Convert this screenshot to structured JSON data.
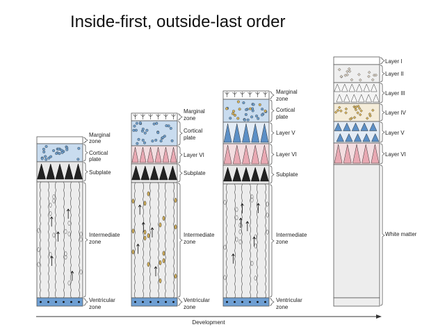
{
  "title": "Inside-first, outside-last order",
  "axis_label": "Development",
  "colors": {
    "cortical_plate": "#c9dcef",
    "cell_blue": "#6ea0cf",
    "ventricular": "#6e9fd3",
    "layer_vi": "#f3dde0",
    "neuron_pink": "#e9a9b3",
    "layer_v": "#e3ecf6",
    "neuron_blue": "#5b8fc6",
    "layer_iv": "#f4ecd9",
    "cell_gold": "#d6b25a",
    "gray": "#ededed",
    "outline": "#555555"
  },
  "stage1": {
    "labels": {
      "marginal": [
        "Marginal",
        "zone"
      ],
      "cortical": [
        "Cortical",
        "plate"
      ],
      "subplate": "Subplate",
      "intermediate": [
        "Intermediate",
        "zone"
      ],
      "ventricular": [
        "Ventricular",
        "zone"
      ]
    }
  },
  "stage2": {
    "labels": {
      "marginal": [
        "Marginal",
        "zone"
      ],
      "cortical": [
        "Cortical",
        "plate"
      ],
      "layer_vi": "Layer VI",
      "subplate": "Subplate",
      "intermediate": [
        "Intermediate",
        "zone"
      ],
      "ventricular": [
        "Ventricular",
        "zone"
      ]
    }
  },
  "stage3": {
    "labels": {
      "marginal": [
        "Marginal",
        "zone"
      ],
      "cortical": [
        "Cortical",
        "plate"
      ],
      "layer_v": "Layer V",
      "layer_vi": "Layer VI",
      "subplate": "Subplate",
      "intermediate": [
        "Intermediate",
        "zone"
      ],
      "ventricular": [
        "Ventricular",
        "zone"
      ]
    }
  },
  "stage4": {
    "labels": {
      "layer_i": "Layer I",
      "layer_ii": "Layer II",
      "layer_iii": "Layer III",
      "layer_iv": "Layer IV",
      "layer_v": "Layer V",
      "layer_vi": "Layer VI",
      "white_matter": "White matter"
    }
  }
}
